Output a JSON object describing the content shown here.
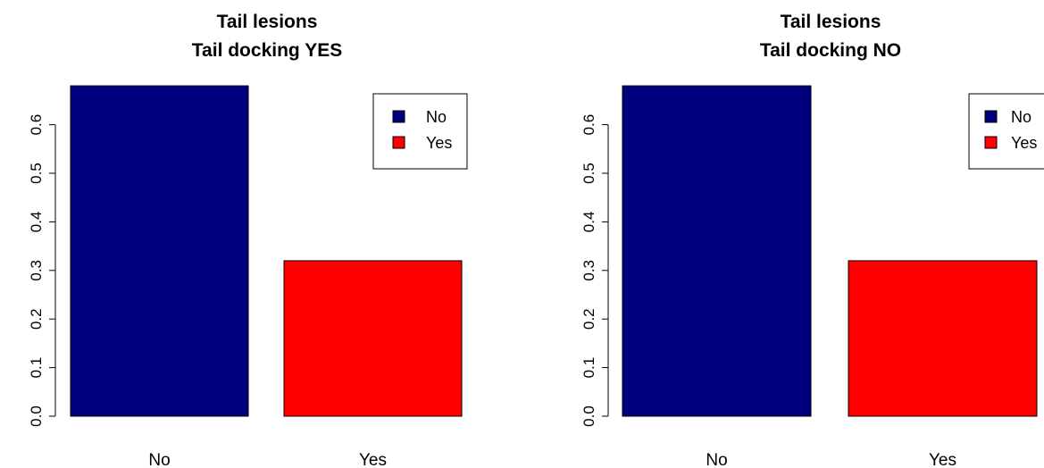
{
  "chart_data": [
    {
      "type": "bar",
      "title": "Tail lesions",
      "subtitle": "Tail docking YES",
      "categories": [
        "No",
        "Yes"
      ],
      "values": [
        0.68,
        0.32
      ],
      "colors": [
        "#00007f",
        "#ff0000"
      ],
      "ylim": [
        0,
        0.68
      ],
      "yticks": [
        "0.0",
        "0.1",
        "0.2",
        "0.3",
        "0.4",
        "0.5",
        "0.6"
      ],
      "xlabel": "",
      "ylabel": "",
      "grid": false,
      "legend": {
        "position": "top-right",
        "entries": [
          "No",
          "Yes"
        ]
      }
    },
    {
      "type": "bar",
      "title": "Tail lesions",
      "subtitle": "Tail docking NO",
      "categories": [
        "No",
        "Yes"
      ],
      "values": [
        0.68,
        0.32
      ],
      "colors": [
        "#00007f",
        "#ff0000"
      ],
      "ylim": [
        0,
        0.68
      ],
      "yticks": [
        "0.0",
        "0.1",
        "0.2",
        "0.3",
        "0.4",
        "0.5",
        "0.6"
      ],
      "xlabel": "",
      "ylabel": "",
      "grid": false,
      "legend": {
        "position": "top-right",
        "entries": [
          "No",
          "Yes"
        ]
      }
    }
  ]
}
